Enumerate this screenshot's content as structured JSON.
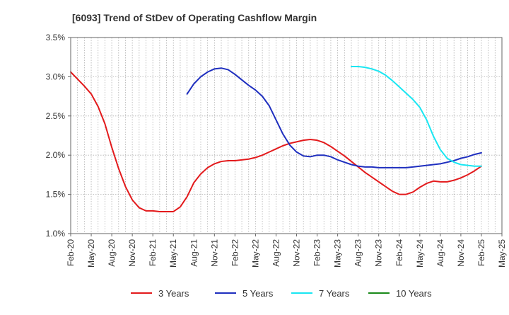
{
  "chart_data": {
    "type": "line",
    "title": "[6093]  Trend of StDev of Operating Cashflow Margin",
    "xlabel": "",
    "ylabel": "",
    "ylim": [
      1.0,
      3.5
    ],
    "y_ticks": [
      1.0,
      1.5,
      2.0,
      2.5,
      3.0,
      3.5
    ],
    "y_tick_labels": [
      "1.0%",
      "1.5%",
      "2.0%",
      "2.5%",
      "3.0%",
      "3.5%"
    ],
    "x_start": "2020-02",
    "x_end": "2025-05",
    "x_tick_labels": [
      "Feb-20",
      "May-20",
      "Aug-20",
      "Nov-20",
      "Feb-21",
      "May-21",
      "Aug-21",
      "Nov-21",
      "Feb-22",
      "May-22",
      "Aug-22",
      "Nov-22",
      "Feb-23",
      "May-23",
      "Aug-23",
      "Nov-23",
      "Feb-24",
      "May-24",
      "Aug-24",
      "Nov-24",
      "Feb-25",
      "May-25"
    ],
    "grid": "vertical dotted monthly lines and horizontal dotted lines",
    "legend_position": "bottom",
    "series": [
      {
        "name": "3 Years",
        "color": "#e31a1c",
        "points": [
          [
            "2020-02",
            3.06
          ],
          [
            "2020-03",
            2.97
          ],
          [
            "2020-04",
            2.88
          ],
          [
            "2020-05",
            2.78
          ],
          [
            "2020-06",
            2.62
          ],
          [
            "2020-07",
            2.4
          ],
          [
            "2020-08",
            2.1
          ],
          [
            "2020-09",
            1.83
          ],
          [
            "2020-10",
            1.6
          ],
          [
            "2020-11",
            1.43
          ],
          [
            "2020-12",
            1.33
          ],
          [
            "2021-01",
            1.29
          ],
          [
            "2021-02",
            1.29
          ],
          [
            "2021-03",
            1.28
          ],
          [
            "2021-04",
            1.28
          ],
          [
            "2021-05",
            1.28
          ],
          [
            "2021-06",
            1.34
          ],
          [
            "2021-07",
            1.47
          ],
          [
            "2021-08",
            1.65
          ],
          [
            "2021-09",
            1.76
          ],
          [
            "2021-10",
            1.84
          ],
          [
            "2021-11",
            1.89
          ],
          [
            "2021-12",
            1.92
          ],
          [
            "2022-01",
            1.93
          ],
          [
            "2022-02",
            1.93
          ],
          [
            "2022-03",
            1.94
          ],
          [
            "2022-04",
            1.95
          ],
          [
            "2022-05",
            1.97
          ],
          [
            "2022-06",
            2.0
          ],
          [
            "2022-07",
            2.04
          ],
          [
            "2022-08",
            2.08
          ],
          [
            "2022-09",
            2.12
          ],
          [
            "2022-10",
            2.15
          ],
          [
            "2022-11",
            2.17
          ],
          [
            "2022-12",
            2.19
          ],
          [
            "2023-01",
            2.2
          ],
          [
            "2023-02",
            2.19
          ],
          [
            "2023-03",
            2.16
          ],
          [
            "2023-04",
            2.11
          ],
          [
            "2023-05",
            2.05
          ],
          [
            "2023-06",
            1.99
          ],
          [
            "2023-07",
            1.92
          ],
          [
            "2023-08",
            1.85
          ],
          [
            "2023-09",
            1.78
          ],
          [
            "2023-10",
            1.72
          ],
          [
            "2023-11",
            1.66
          ],
          [
            "2023-12",
            1.6
          ],
          [
            "2024-01",
            1.54
          ],
          [
            "2024-02",
            1.5
          ],
          [
            "2024-03",
            1.5
          ],
          [
            "2024-04",
            1.53
          ],
          [
            "2024-05",
            1.59
          ],
          [
            "2024-06",
            1.64
          ],
          [
            "2024-07",
            1.67
          ],
          [
            "2024-08",
            1.66
          ],
          [
            "2024-09",
            1.66
          ],
          [
            "2024-10",
            1.68
          ],
          [
            "2024-11",
            1.71
          ],
          [
            "2024-12",
            1.75
          ],
          [
            "2025-01",
            1.8
          ],
          [
            "2025-02",
            1.86
          ]
        ]
      },
      {
        "name": "5 Years",
        "color": "#1f2fbf",
        "points": [
          [
            "2021-07",
            2.78
          ],
          [
            "2021-08",
            2.91
          ],
          [
            "2021-09",
            3.0
          ],
          [
            "2021-10",
            3.06
          ],
          [
            "2021-11",
            3.1
          ],
          [
            "2021-12",
            3.11
          ],
          [
            "2022-01",
            3.09
          ],
          [
            "2022-02",
            3.03
          ],
          [
            "2022-03",
            2.96
          ],
          [
            "2022-04",
            2.89
          ],
          [
            "2022-05",
            2.83
          ],
          [
            "2022-06",
            2.75
          ],
          [
            "2022-07",
            2.63
          ],
          [
            "2022-08",
            2.45
          ],
          [
            "2022-09",
            2.27
          ],
          [
            "2022-10",
            2.13
          ],
          [
            "2022-11",
            2.04
          ],
          [
            "2022-12",
            1.99
          ],
          [
            "2023-01",
            1.98
          ],
          [
            "2023-02",
            2.0
          ],
          [
            "2023-03",
            2.0
          ],
          [
            "2023-04",
            1.98
          ],
          [
            "2023-05",
            1.94
          ],
          [
            "2023-06",
            1.91
          ],
          [
            "2023-07",
            1.88
          ],
          [
            "2023-08",
            1.86
          ],
          [
            "2023-09",
            1.85
          ],
          [
            "2023-10",
            1.85
          ],
          [
            "2023-11",
            1.84
          ],
          [
            "2023-12",
            1.84
          ],
          [
            "2024-01",
            1.84
          ],
          [
            "2024-02",
            1.84
          ],
          [
            "2024-03",
            1.84
          ],
          [
            "2024-04",
            1.85
          ],
          [
            "2024-05",
            1.86
          ],
          [
            "2024-06",
            1.87
          ],
          [
            "2024-07",
            1.88
          ],
          [
            "2024-08",
            1.89
          ],
          [
            "2024-09",
            1.91
          ],
          [
            "2024-10",
            1.93
          ],
          [
            "2024-11",
            1.96
          ],
          [
            "2024-12",
            1.98
          ],
          [
            "2025-01",
            2.01
          ],
          [
            "2025-02",
            2.03
          ]
        ]
      },
      {
        "name": "7 Years",
        "color": "#19e6f2",
        "points": [
          [
            "2023-07",
            3.13
          ],
          [
            "2023-08",
            3.13
          ],
          [
            "2023-09",
            3.12
          ],
          [
            "2023-10",
            3.1
          ],
          [
            "2023-11",
            3.07
          ],
          [
            "2023-12",
            3.02
          ],
          [
            "2024-01",
            2.95
          ],
          [
            "2024-02",
            2.87
          ],
          [
            "2024-03",
            2.79
          ],
          [
            "2024-04",
            2.71
          ],
          [
            "2024-05",
            2.61
          ],
          [
            "2024-06",
            2.45
          ],
          [
            "2024-07",
            2.24
          ],
          [
            "2024-08",
            2.07
          ],
          [
            "2024-09",
            1.96
          ],
          [
            "2024-10",
            1.91
          ],
          [
            "2024-11",
            1.88
          ],
          [
            "2024-12",
            1.87
          ],
          [
            "2025-01",
            1.86
          ],
          [
            "2025-02",
            1.86
          ]
        ]
      },
      {
        "name": "10 Years",
        "color": "#1a8a1a",
        "points": []
      }
    ]
  }
}
